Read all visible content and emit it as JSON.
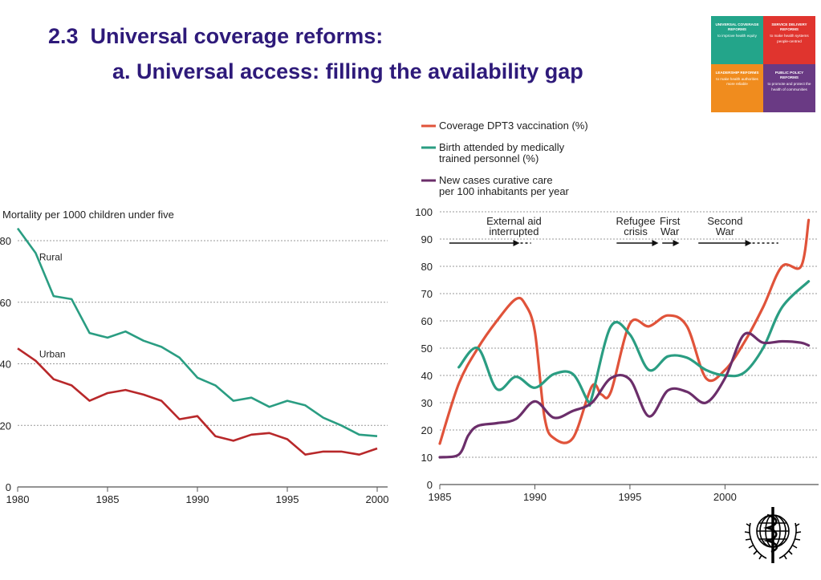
{
  "slide": {
    "title_line1": "2.3  Universal coverage reforms:",
    "title_line2": "a. Universal access: filling the availability gap"
  },
  "logo": {
    "pieces": [
      {
        "head": "UNIVERSAL COVERAGE REFORMS",
        "sub": "to improve health equity"
      },
      {
        "head": "SERVICE DELIVERY REFORMS",
        "sub": "to make health systems people-centred"
      },
      {
        "head": "LEADERSHIP REFORMS",
        "sub": "to make health authorities more reliable"
      },
      {
        "head": "PUBLIC POLICY REFORMS",
        "sub": "to promote and protect the health of communities"
      }
    ],
    "colors": [
      "#23a58a",
      "#e0342e",
      "#f08c1e",
      "#6a3a84"
    ]
  },
  "emblem": {
    "icon": "who-emblem-icon"
  },
  "chart_data": [
    {
      "type": "line",
      "title": "Mortality per 1000 children under five",
      "xlim": [
        1980,
        2000
      ],
      "ylim": [
        0,
        80
      ],
      "xticks": [
        1980,
        1985,
        1990,
        1995,
        2000
      ],
      "yticks": [
        0,
        20,
        40,
        60,
        80
      ],
      "ytick_labels": [
        "0",
        "20",
        "40",
        "60",
        "80"
      ],
      "grid": true,
      "series": [
        {
          "name": "Rural",
          "color": "#2a9d82",
          "x": [
            1980,
            1981,
            1982,
            1983,
            1984,
            1985,
            1986,
            1987,
            1988,
            1989,
            1990,
            1991,
            1992,
            1993,
            1994,
            1995,
            1996,
            1997,
            1998,
            1999,
            2000
          ],
          "y": [
            84,
            76,
            62,
            61,
            50,
            48.5,
            50.5,
            47.5,
            45.5,
            42,
            35.5,
            33,
            28,
            29,
            26,
            28,
            26.5,
            22.5,
            20,
            17,
            16.5
          ]
        },
        {
          "name": "Urban",
          "color": "#b8282a",
          "x": [
            1980,
            1981,
            1982,
            1983,
            1984,
            1985,
            1986,
            1987,
            1988,
            1989,
            1990,
            1991,
            1992,
            1993,
            1994,
            1995,
            1996,
            1997,
            1998,
            1999,
            2000
          ],
          "y": [
            45,
            41,
            35,
            33,
            28,
            30.5,
            31.5,
            30,
            28,
            22,
            23,
            16.5,
            15,
            17,
            17.5,
            15.5,
            10.5,
            11.5,
            11.5,
            10.5,
            12.5
          ]
        }
      ]
    },
    {
      "type": "line",
      "xlim": [
        1985,
        2004.5
      ],
      "ylim": [
        0,
        100
      ],
      "xticks": [
        1985,
        1990,
        1995,
        2000
      ],
      "yticks": [
        0,
        10,
        20,
        30,
        40,
        50,
        60,
        70,
        80,
        90,
        100
      ],
      "grid": true,
      "legend_position": "top-left",
      "legend": [
        {
          "lines": [
            "Coverage DPT3 vaccination (%)"
          ],
          "color": "#e0533a"
        },
        {
          "lines": [
            "Birth attended by medically",
            "trained personnel (%)"
          ],
          "color": "#2a9d82"
        },
        {
          "lines": [
            "New cases curative care",
            "per 100 inhabitants per year"
          ],
          "color": "#6b2e6a"
        }
      ],
      "annotations": [
        {
          "lines": [
            "External aid",
            "interrupted"
          ],
          "x_label": 1988.9,
          "arrow": [
            1985.5,
            1989.2
          ],
          "dashed_to": 1989.8
        },
        {
          "lines": [
            "Refugee",
            "crisis"
          ],
          "x_label": 1995.3,
          "arrow": [
            1994.3,
            1996.5
          ]
        },
        {
          "lines": [
            "First",
            "War"
          ],
          "x_label": 1997.1,
          "arrow": [
            1996.7,
            1997.6
          ]
        },
        {
          "lines": [
            "Second",
            "War"
          ],
          "x_label": 2000,
          "arrow": [
            1998.6,
            2001.4
          ],
          "dashed_to": 2002.8
        }
      ],
      "series": [
        {
          "name": "Coverage DPT3 vaccination (%)",
          "color": "#e0533a",
          "x": [
            1985,
            1986,
            1987,
            1988,
            1989,
            1989.5,
            1990,
            1990.5,
            1991,
            1992,
            1993,
            1993.5,
            1994,
            1995,
            1996,
            1997,
            1998,
            1999,
            2000,
            2001,
            2002,
            2003,
            2004,
            2004.4
          ],
          "y": [
            15,
            37,
            50,
            60,
            68,
            66,
            56,
            25,
            17,
            17,
            36,
            33,
            34,
            59,
            58,
            62,
            58,
            39,
            42,
            52,
            65,
            80,
            80,
            97
          ]
        },
        {
          "name": "Birth attended by medically trained personnel (%)",
          "color": "#2a9d82",
          "x": [
            1986,
            1987,
            1988,
            1989,
            1990,
            1991,
            1992,
            1992.8,
            1993,
            1994,
            1995,
            1996,
            1997,
            1998,
            1999,
            2000,
            2001,
            2002,
            2003,
            2004.4
          ],
          "y": [
            43,
            50,
            35,
            39.5,
            35.5,
            40.5,
            40.5,
            30.5,
            32,
            58,
            55,
            42,
            47,
            46.5,
            42,
            40,
            41,
            50,
            65,
            74.5
          ]
        },
        {
          "name": "New cases curative care per 100 inhabitants per year",
          "color": "#6b2e6a",
          "x": [
            1985,
            1986,
            1986.5,
            1987,
            1988,
            1989,
            1990,
            1991,
            1992,
            1993,
            1994,
            1995,
            1996,
            1997,
            1998,
            1999,
            2000,
            2001,
            2002,
            2003,
            2004,
            2004.4
          ],
          "y": [
            10,
            11,
            18,
            21.5,
            22.5,
            24,
            30.5,
            24.5,
            27,
            30,
            39,
            38.5,
            25,
            34.5,
            34,
            30,
            39,
            55,
            52,
            52.5,
            52,
            51
          ]
        }
      ]
    }
  ]
}
